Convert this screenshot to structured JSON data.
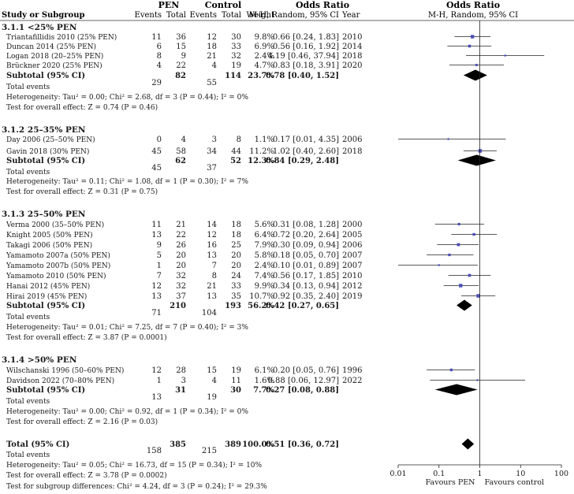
{
  "header": {
    "study_col": "Study or Subgroup",
    "pen_group": "PEN",
    "control_group": "Control",
    "events": "Events",
    "total": "Total",
    "weight": "Weight",
    "or_title": "Odds Ratio",
    "or_method": "M-H, Random, 95% CI",
    "year": "Year",
    "plot_title": "Odds Ratio",
    "plot_method": "M-H, Random, 95% CI"
  },
  "chart_data": {
    "type": "forest",
    "x_scale": "log",
    "xlim": [
      0.01,
      100
    ],
    "ticks": [
      0.01,
      0.1,
      1,
      10,
      100
    ],
    "tick_labels": [
      "0.01",
      "0.1",
      "1",
      "10",
      "100"
    ],
    "favours_left": "Favours PEN",
    "favours_right": "Favours control",
    "subgroups": [
      {
        "heading": "3.1.1 <25% PEN",
        "studies": [
          {
            "name": "Triantafillidis 2010 (25% PEN)",
            "pen_events": "11",
            "pen_total": "36",
            "ctrl_events": "12",
            "ctrl_total": "30",
            "weight": "9.8%",
            "ci_text": "0.66 [0.24, 1.83]",
            "year": "2010",
            "or": 0.66,
            "lo": 0.24,
            "hi": 1.83
          },
          {
            "name": "Duncan 2014 (25% PEN)",
            "pen_events": "6",
            "pen_total": "15",
            "ctrl_events": "18",
            "ctrl_total": "33",
            "weight": "6.9%",
            "ci_text": "0.56 [0.16, 1.92]",
            "year": "2014",
            "or": 0.56,
            "lo": 0.16,
            "hi": 1.92
          },
          {
            "name": "Logan 2018 (20–25% PEN)",
            "pen_events": "8",
            "pen_total": "9",
            "ctrl_events": "21",
            "ctrl_total": "32",
            "weight": "2.4%",
            "ci_text": "4.19 [0.46, 37.94]",
            "year": "2018",
            "or": 4.19,
            "lo": 0.46,
            "hi": 37.94
          },
          {
            "name": "Brückner 2020 (25% PEN)",
            "pen_events": "4",
            "pen_total": "22",
            "ctrl_events": "4",
            "ctrl_total": "19",
            "weight": "4.7%",
            "ci_text": "0.83 [0.18, 3.91]",
            "year": "2020",
            "or": 0.83,
            "lo": 0.18,
            "hi": 3.91
          }
        ],
        "subtotal": {
          "label": "Subtotal (95% CI)",
          "pen_total": "82",
          "ctrl_total": "114",
          "weight": "23.7%",
          "ci_text": "0.78 [0.40, 1.52]",
          "or": 0.78,
          "lo": 0.4,
          "hi": 1.52
        },
        "total_events": {
          "label": "Total events",
          "pen": "29",
          "ctrl": "55"
        },
        "heterogeneity": "Heterogeneity: Tau² = 0.00; Chi² = 2.68, df = 3 (P = 0.44); I² = 0%",
        "overall": "Test for overall effect: Z = 0.74 (P = 0.46)"
      },
      {
        "heading": "3.1.2 25–35% PEN",
        "studies": [
          {
            "name": "Day 2006 (25–50% PEN)",
            "pen_events": "0",
            "pen_total": "4",
            "ctrl_events": "3",
            "ctrl_total": "8",
            "weight": "1.1%",
            "ci_text": "0.17 [0.01, 4.35]",
            "year": "2006",
            "or": 0.17,
            "lo": 0.01,
            "hi": 4.35
          },
          {
            "name": "Gavin 2018 (30% PEN)",
            "pen_events": "45",
            "pen_total": "58",
            "ctrl_events": "34",
            "ctrl_total": "44",
            "weight": "11.2%",
            "ci_text": "1.02 [0.40, 2.60]",
            "year": "2018",
            "or": 1.02,
            "lo": 0.4,
            "hi": 2.6
          }
        ],
        "subtotal": {
          "label": "Subtotal (95% CI)",
          "pen_total": "62",
          "ctrl_total": "52",
          "weight": "12.3%",
          "ci_text": "0.84 [0.29, 2.48]",
          "or": 0.84,
          "lo": 0.29,
          "hi": 2.48
        },
        "total_events": {
          "label": "Total events",
          "pen": "45",
          "ctrl": "37"
        },
        "heterogeneity": "Heterogeneity: Tau² = 0.11; Chi² = 1.08, df = 1 (P = 0.30); I² = 7%",
        "overall": "Test for overall effect: Z = 0.31 (P = 0.75)"
      },
      {
        "heading": "3.1.3 25–50% PEN",
        "studies": [
          {
            "name": "Verma 2000 (35–50% PEN)",
            "pen_events": "11",
            "pen_total": "21",
            "ctrl_events": "14",
            "ctrl_total": "18",
            "weight": "5.6%",
            "ci_text": "0.31 [0.08, 1.28]",
            "year": "2000",
            "or": 0.31,
            "lo": 0.08,
            "hi": 1.28
          },
          {
            "name": "Knight 2005 (50% PEN)",
            "pen_events": "13",
            "pen_total": "22",
            "ctrl_events": "12",
            "ctrl_total": "18",
            "weight": "6.4%",
            "ci_text": "0.72 [0.20, 2.64]",
            "year": "2005",
            "or": 0.72,
            "lo": 0.2,
            "hi": 2.64
          },
          {
            "name": "Takagi 2006 (50% PEN)",
            "pen_events": "9",
            "pen_total": "26",
            "ctrl_events": "16",
            "ctrl_total": "25",
            "weight": "7.9%",
            "ci_text": "0.30 [0.09, 0.94]",
            "year": "2006",
            "or": 0.3,
            "lo": 0.09,
            "hi": 0.94
          },
          {
            "name": "Yamamoto 2007a (50% PEN)",
            "pen_events": "5",
            "pen_total": "20",
            "ctrl_events": "13",
            "ctrl_total": "20",
            "weight": "5.8%",
            "ci_text": "0.18 [0.05, 0.70]",
            "year": "2007",
            "or": 0.18,
            "lo": 0.05,
            "hi": 0.7
          },
          {
            "name": "Yamamoto 2007b (50% PEN)",
            "pen_events": "1",
            "pen_total": "20",
            "ctrl_events": "7",
            "ctrl_total": "20",
            "weight": "2.4%",
            "ci_text": "0.10 [0.01, 0.89]",
            "year": "2007",
            "or": 0.1,
            "lo": 0.01,
            "hi": 0.89
          },
          {
            "name": "Yamamoto 2010 (50% PEN)",
            "pen_events": "7",
            "pen_total": "32",
            "ctrl_events": "8",
            "ctrl_total": "24",
            "weight": "7.4%",
            "ci_text": "0.56 [0.17, 1.85]",
            "year": "2010",
            "or": 0.56,
            "lo": 0.17,
            "hi": 1.85
          },
          {
            "name": "Hanai 2012 (45% PEN)",
            "pen_events": "12",
            "pen_total": "32",
            "ctrl_events": "21",
            "ctrl_total": "33",
            "weight": "9.9%",
            "ci_text": "0.34 [0.13, 0.94]",
            "year": "2012",
            "or": 0.34,
            "lo": 0.13,
            "hi": 0.94
          },
          {
            "name": "Hirai 2019 (45% PEN)",
            "pen_events": "13",
            "pen_total": "37",
            "ctrl_events": "13",
            "ctrl_total": "35",
            "weight": "10.7%",
            "ci_text": "0.92 [0.35, 2.40]",
            "year": "2019",
            "or": 0.92,
            "lo": 0.35,
            "hi": 2.4
          }
        ],
        "subtotal": {
          "label": "Subtotal (95% CI)",
          "pen_total": "210",
          "ctrl_total": "193",
          "weight": "56.2%",
          "ci_text": "0.42 [0.27, 0.65]",
          "or": 0.42,
          "lo": 0.27,
          "hi": 0.65
        },
        "total_events": {
          "label": "Total events",
          "pen": "71",
          "ctrl": "104"
        },
        "heterogeneity": "Heterogeneity: Tau² = 0.01; Chi² = 7.25, df = 7 (P = 0.40); I² = 3%",
        "overall": "Test for overall effect: Z = 3.87 (P = 0.0001)"
      },
      {
        "heading": "3.1.4 >50% PEN",
        "studies": [
          {
            "name": "Wilschanski 1996 (50–60% PEN)",
            "pen_events": "12",
            "pen_total": "28",
            "ctrl_events": "15",
            "ctrl_total": "19",
            "weight": "6.1%",
            "ci_text": "0.20 [0.05, 0.76]",
            "year": "1996",
            "or": 0.2,
            "lo": 0.05,
            "hi": 0.76
          },
          {
            "name": "Davidson 2022 (70–80% PEN)",
            "pen_events": "1",
            "pen_total": "3",
            "ctrl_events": "4",
            "ctrl_total": "11",
            "weight": "1.6%",
            "ci_text": "0.88 [0.06, 12.97]",
            "year": "2022",
            "or": 0.88,
            "lo": 0.06,
            "hi": 12.97
          }
        ],
        "subtotal": {
          "label": "Subtotal (95% CI)",
          "pen_total": "31",
          "ctrl_total": "30",
          "weight": "7.7%",
          "ci_text": "0.27 [0.08, 0.88]",
          "or": 0.27,
          "lo": 0.08,
          "hi": 0.88
        },
        "total_events": {
          "label": "Total events",
          "pen": "13",
          "ctrl": "19"
        },
        "heterogeneity": "Heterogeneity: Tau² = 0.00; Chi² = 0.92, df = 1 (P = 0.34); I² = 0%",
        "overall": "Test for overall effect: Z = 2.16 (P = 0.03)"
      }
    ],
    "overall": {
      "label": "Total (95% CI)",
      "pen_total": "385",
      "ctrl_total": "389",
      "weight": "100.0%",
      "ci_text": "0.51 [0.36, 0.72]",
      "or": 0.51,
      "lo": 0.36,
      "hi": 0.72,
      "total_events": {
        "label": "Total events",
        "pen": "158",
        "ctrl": "215"
      },
      "heterogeneity": "Heterogeneity: Tau² = 0.05; Chi² = 16.73, df = 15 (P = 0.34); I² = 10%",
      "overall_effect": "Test for overall effect: Z = 3.78 (P = 0.0002)",
      "subgroup_diff": "Test for subgroup differences: Chi² = 4.24, df = 3 (P = 0.24); I² = 29.3%"
    },
    "colors": {
      "text": "#1a1a1a",
      "marker": "#4a4fb5",
      "line": "#222222",
      "diamond": "#000000"
    }
  }
}
